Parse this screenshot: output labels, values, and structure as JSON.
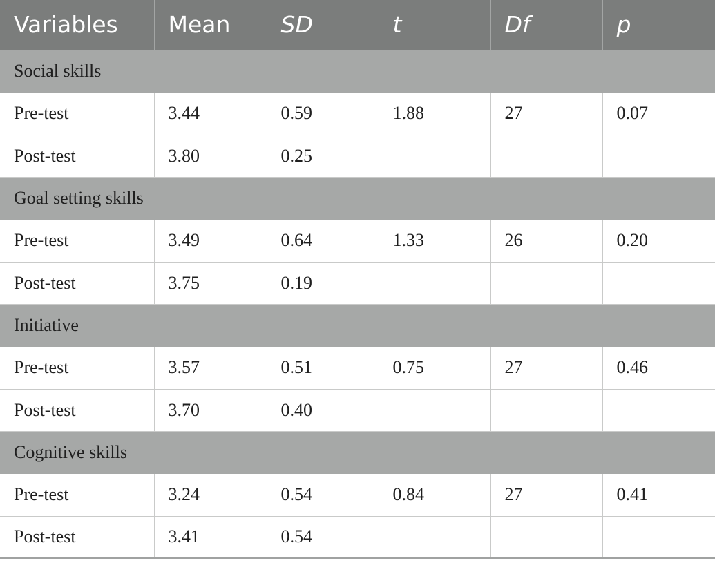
{
  "columns": [
    "Variables",
    "Mean",
    "SD",
    "t",
    "Df",
    "p"
  ],
  "groups": [
    {
      "label": "Social skills",
      "rows": [
        {
          "label": "Pre-test",
          "mean": "3.44",
          "sd": "0.59",
          "t": "1.88",
          "df": "27",
          "p": "0.07"
        },
        {
          "label": "Post-test",
          "mean": "3.80",
          "sd": "0.25",
          "t": "",
          "df": "",
          "p": ""
        }
      ]
    },
    {
      "label": "Goal setting skills",
      "rows": [
        {
          "label": "Pre-test",
          "mean": "3.49",
          "sd": "0.64",
          "t": "1.33",
          "df": "26",
          "p": "0.20"
        },
        {
          "label": "Post-test",
          "mean": "3.75",
          "sd": "0.19",
          "t": "",
          "df": "",
          "p": ""
        }
      ]
    },
    {
      "label": "Initiative",
      "rows": [
        {
          "label": "Pre-test",
          "mean": "3.57",
          "sd": "0.51",
          "t": "0.75",
          "df": "27",
          "p": "0.46"
        },
        {
          "label": "Post-test",
          "mean": "3.70",
          "sd": "0.40",
          "t": "",
          "df": "",
          "p": ""
        }
      ]
    },
    {
      "label": "Cognitive skills",
      "rows": [
        {
          "label": "Pre-test",
          "mean": "3.24",
          "sd": "0.54",
          "t": "0.84",
          "df": "27",
          "p": "0.41"
        },
        {
          "label": "Post-test",
          "mean": "3.41",
          "sd": "0.54",
          "t": "",
          "df": "",
          "p": ""
        }
      ]
    }
  ],
  "colors": {
    "header_bg": "#7b7d7c",
    "group_bg": "#a6a8a7",
    "row_bg": "#ffffff"
  }
}
